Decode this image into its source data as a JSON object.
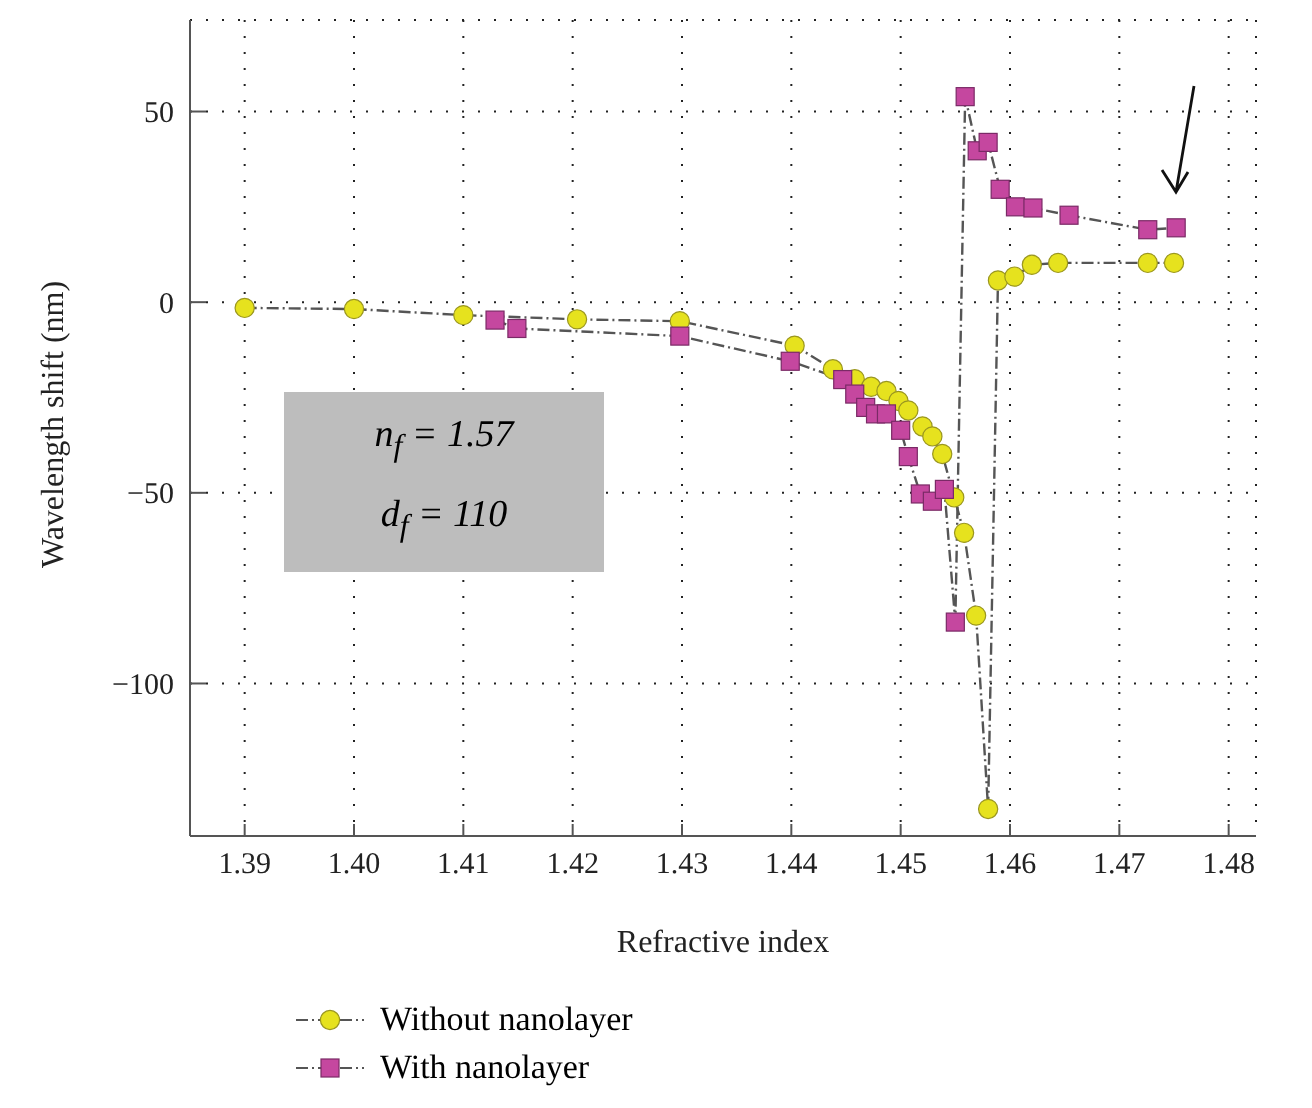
{
  "chart_data": {
    "type": "line",
    "xlabel": "Refractive index",
    "ylabel": "Wavelength shift (nm)",
    "xlim": [
      1.385,
      1.4825
    ],
    "xticks": [
      1.39,
      {
        "value": 1.4,
        "label": "1.40"
      },
      1.41,
      1.42,
      1.43,
      1.44,
      1.45,
      1.46,
      1.47,
      1.48
    ],
    "ylim": [
      -140,
      74
    ],
    "yticks": [
      {
        "value": -100,
        "label": "−100"
      },
      {
        "value": -50,
        "label": "−50"
      },
      0,
      50
    ],
    "grid": true,
    "legend": "bottom left",
    "line_style": "dashed",
    "annotations": [
      "n$_{f}$ = 1.57",
      "d$_{f}$ = 110"
    ],
    "series": [
      {
        "name": "Without nanolayer",
        "color": "#e6e21e",
        "marker": "circle",
        "x": [
          1.39,
          1.4,
          1.41,
          1.4204,
          1.4298,
          1.4403,
          1.4438,
          1.4458,
          1.4473,
          1.4487,
          1.4498,
          1.4507,
          1.452,
          1.4529,
          1.4538,
          1.4549,
          1.4558,
          1.4569,
          1.458,
          1.4589,
          1.4604,
          1.462,
          1.4644,
          1.4726,
          1.475
        ],
        "values": [
          -1.5,
          -1.8,
          -3.4,
          -4.5,
          -5,
          -11.4,
          -17.6,
          -20.2,
          -22.2,
          -23.3,
          -25.9,
          -28.4,
          -32.6,
          -35.2,
          -39.8,
          -51.2,
          -60.5,
          -82.2,
          -132.9,
          5.7,
          6.7,
          9.8,
          10.3,
          10.3,
          10.3
        ]
      },
      {
        "name": "With nanolayer",
        "color": "#c5479f",
        "marker": "square",
        "x": [
          1.4129,
          1.4149,
          1.4298,
          1.4399,
          1.4447,
          1.4458,
          1.4468,
          1.4477,
          1.4487,
          1.45,
          1.4507,
          1.4518,
          1.4529,
          1.454,
          1.455,
          1.4559,
          1.457,
          1.458,
          1.4591,
          1.4605,
          1.4621,
          1.4654,
          1.4726,
          1.4752
        ],
        "values": [
          -4.7,
          -6.9,
          -8.9,
          -15.5,
          -20.3,
          -24.1,
          -27.6,
          -29.3,
          -29.3,
          -33.6,
          -40.5,
          -50.3,
          -52.2,
          -49.1,
          -83.9,
          53.9,
          39.7,
          41.9,
          29.6,
          25,
          24.7,
          22.8,
          19,
          19.5
        ]
      }
    ]
  }
}
